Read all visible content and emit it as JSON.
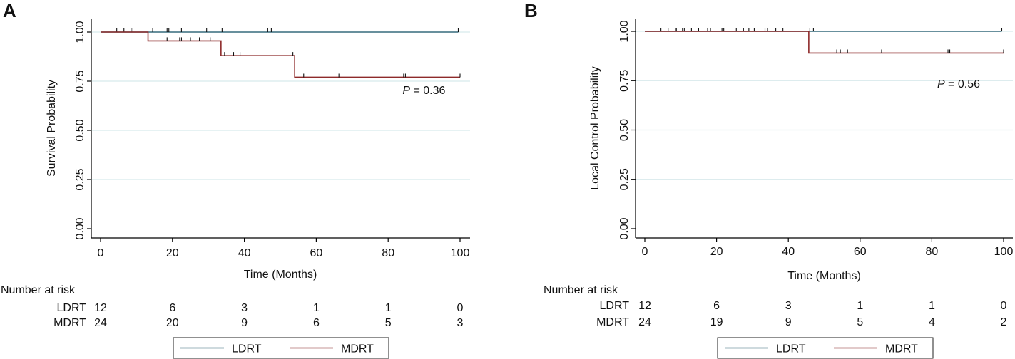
{
  "legend": {
    "LDRT": "LDRT",
    "MDRT": "MDRT"
  },
  "colors": {
    "LDRT": "#3a6c7e",
    "MDRT": "#8e2a2a",
    "grid": "#d8e9ec",
    "axis": "#000000"
  },
  "chart_data": [
    {
      "type": "line",
      "panel": "A",
      "step": true,
      "ylabel": "Survival Probability",
      "xlabel": "Time (Months)",
      "xlim": [
        0,
        100
      ],
      "ylim": [
        0,
        1
      ],
      "xticks": [
        0,
        20,
        40,
        60,
        80,
        100
      ],
      "yticks": [
        0,
        0.25,
        0.5,
        0.75,
        1
      ],
      "ytick_labels": [
        "0.00",
        "0.25",
        "0.50",
        "0.75",
        "1.00"
      ],
      "grid": true,
      "annotation": {
        "italic": "P",
        "text": " = 0.36",
        "x": 84,
        "y": 0.685
      },
      "series": [
        {
          "name": "LDRT",
          "color": "#3a6c7e",
          "x": [
            0,
            99.5
          ],
          "y": [
            1,
            1
          ],
          "censor_x": [
            4.5,
            6.5,
            8.5,
            9,
            14.5,
            18.5,
            19,
            22.5,
            29.5,
            33.8,
            46.5,
            47.5,
            99.5
          ]
        },
        {
          "name": "MDRT",
          "color": "#8e2a2a",
          "x": [
            0,
            13.2,
            33.5,
            54,
            100
          ],
          "y": [
            1,
            0.955,
            0.88,
            0.77,
            0.77
          ],
          "censor_x": [
            18.5,
            22,
            22.5,
            25,
            27.5,
            30.5,
            34.5,
            37,
            38.8,
            53.5,
            56.5,
            66.3,
            84.3,
            84.8,
            100
          ]
        }
      ],
      "risk_table": {
        "title": "Number at risk",
        "timepoints": [
          0,
          20,
          40,
          60,
          80,
          100
        ],
        "rows": [
          {
            "label": "LDRT",
            "counts": [
              "12",
              "6",
              "3",
              "1",
              "1",
              "0"
            ]
          },
          {
            "label": "MDRT",
            "counts": [
              "24",
              "20",
              "9",
              "6",
              "5",
              "3"
            ]
          }
        ]
      }
    },
    {
      "type": "line",
      "panel": "B",
      "step": true,
      "ylabel": "Local Control Probability",
      "xlabel": "Time (Months)",
      "xlim": [
        0,
        100
      ],
      "ylim": [
        0,
        1
      ],
      "xticks": [
        0,
        20,
        40,
        60,
        80,
        100
      ],
      "yticks": [
        0,
        0.25,
        0.5,
        0.75,
        1
      ],
      "ytick_labels": [
        "0.00",
        "0.25",
        "0.50",
        "0.75",
        "1.00"
      ],
      "grid": true,
      "annotation": {
        "italic": "P",
        "text": " = 0.56",
        "x": 81.5,
        "y": 0.715
      },
      "series": [
        {
          "name": "LDRT",
          "color": "#3a6c7e",
          "x": [
            0,
            99.5
          ],
          "y": [
            1,
            1
          ],
          "censor_x": [
            4.5,
            6.5,
            8.5,
            8.8,
            10.5,
            11,
            13,
            15,
            17.5,
            18.3,
            21.5,
            22,
            25.5,
            27.5,
            29,
            30.5,
            33.5,
            34.2,
            36.5,
            38.5,
            46,
            47,
            99.5
          ]
        },
        {
          "name": "MDRT",
          "color": "#8e2a2a",
          "x": [
            0,
            45.7,
            100
          ],
          "y": [
            1,
            0.89,
            0.89
          ],
          "censor_x": [
            53.5,
            54.5,
            56.5,
            66,
            84.5,
            85,
            100
          ]
        }
      ],
      "risk_table": {
        "title": "Number at risk",
        "timepoints": [
          0,
          20,
          40,
          60,
          80,
          100
        ],
        "rows": [
          {
            "label": "LDRT",
            "counts": [
              "12",
              "6",
              "3",
              "1",
              "1",
              "0"
            ]
          },
          {
            "label": "MDRT",
            "counts": [
              "24",
              "19",
              "9",
              "5",
              "4",
              "2"
            ]
          }
        ]
      }
    }
  ]
}
